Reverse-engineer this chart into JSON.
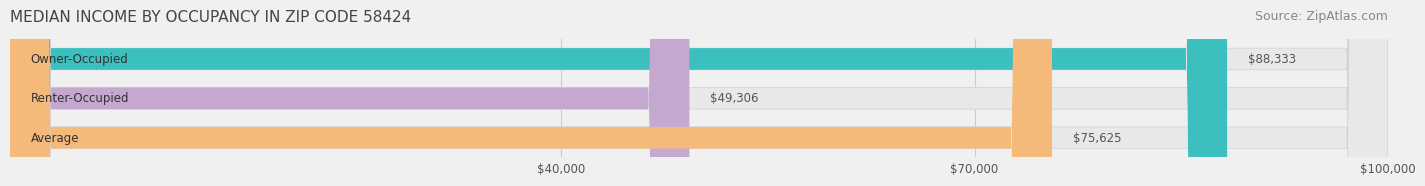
{
  "title": "MEDIAN INCOME BY OCCUPANCY IN ZIP CODE 58424",
  "source": "Source: ZipAtlas.com",
  "categories": [
    "Owner-Occupied",
    "Renter-Occupied",
    "Average"
  ],
  "values": [
    88333,
    49306,
    75625
  ],
  "bar_colors": [
    "#3bbfbf",
    "#c4a8d0",
    "#f5b97a"
  ],
  "bar_edge_color": "#cccccc",
  "value_labels": [
    "$88,333",
    "$49,306",
    "$75,625"
  ],
  "xlim": [
    0,
    100000
  ],
  "xticks": [
    40000,
    70000,
    100000
  ],
  "xtick_labels": [
    "$40,000",
    "$70,000",
    "$100,000"
  ],
  "background_color": "#f0f0f0",
  "bar_bg_color": "#e8e8e8",
  "title_fontsize": 11,
  "source_fontsize": 9,
  "label_fontsize": 8.5,
  "value_fontsize": 8.5,
  "tick_fontsize": 8.5,
  "bar_height": 0.55,
  "fig_width": 14.06,
  "fig_height": 1.97
}
